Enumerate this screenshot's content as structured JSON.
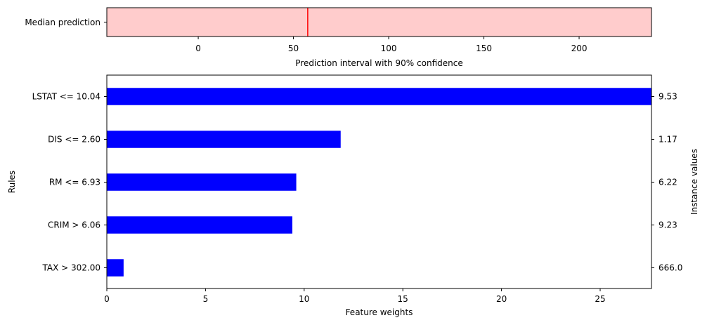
{
  "chart_data": [
    {
      "type": "interval",
      "category_label": "Median prediction",
      "median": 57.5,
      "xlim": [
        -48,
        238
      ],
      "xticks": [
        "0",
        "50",
        "100",
        "150",
        "200"
      ],
      "xtick_values": [
        0,
        50,
        100,
        150,
        200
      ],
      "xlabel": "Prediction interval with 90% confidence",
      "colors": {
        "band": "#ffcccc",
        "median": "#ff0000"
      }
    },
    {
      "type": "bar",
      "orientation": "horizontal",
      "categories": [
        "LSTAT <= 10.04",
        "DIS <= 2.60",
        "RM <= 6.93",
        "CRIM > 6.06",
        "TAX > 302.00"
      ],
      "values": [
        27.6,
        11.85,
        9.6,
        9.4,
        0.85
      ],
      "instance_values": [
        "9.53",
        "1.17",
        "6.22",
        "9.23",
        "666.0"
      ],
      "xlim": [
        0,
        27.6
      ],
      "xticks": [
        "0",
        "5",
        "10",
        "15",
        "20",
        "25"
      ],
      "xtick_values": [
        0,
        5,
        10,
        15,
        20,
        25
      ],
      "xlabel": "Feature weights",
      "ylabel": "Rules",
      "y2label": "Instance values",
      "colors": {
        "bar": "#0000ff"
      }
    }
  ]
}
